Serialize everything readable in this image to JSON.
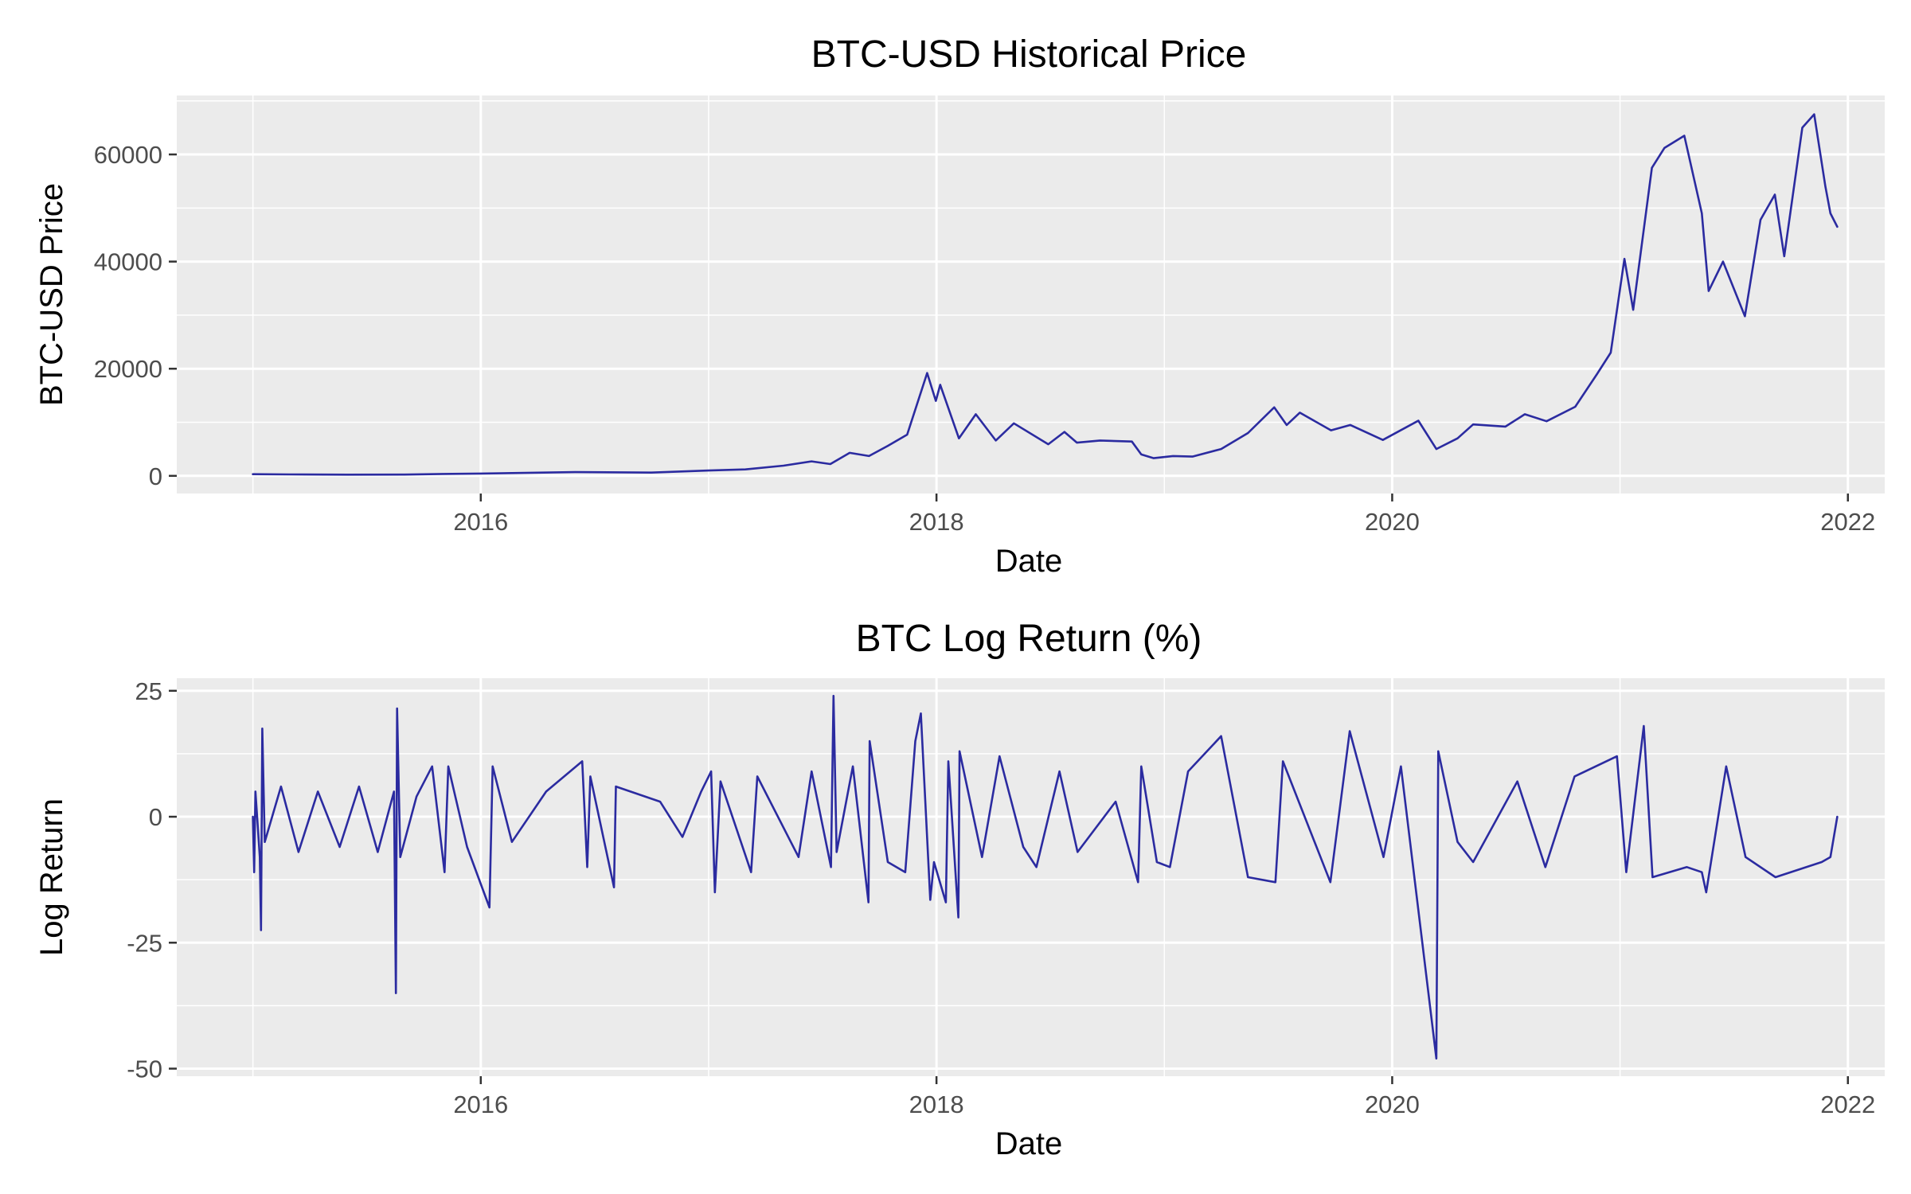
{
  "colors": {
    "series": "#2b2ba0",
    "panel": "#ebebeb",
    "grid": "#ffffff",
    "tick_text": "#4d4d4d"
  },
  "chart_data": [
    {
      "type": "line",
      "title": "BTC-USD Historical Price",
      "xlabel": "Date",
      "ylabel": "BTC-USD Price",
      "x_ticks": [
        "2016",
        "2018",
        "2020",
        "2022"
      ],
      "y_ticks": [
        "0",
        "20000",
        "40000",
        "60000"
      ],
      "xlim": [
        "2014-09-01",
        "2022-03-01"
      ],
      "ylim": [
        -3300,
        71000
      ],
      "grid": true,
      "series": [
        {
          "values": [
            [
              "2015-01-01",
              315
            ],
            [
              "2015-03-01",
              270
            ],
            [
              "2015-06-01",
              225
            ],
            [
              "2015-09-01",
              230
            ],
            [
              "2015-11-01",
              350
            ],
            [
              "2016-01-01",
              430
            ],
            [
              "2016-06-01",
              700
            ],
            [
              "2016-10-01",
              615
            ],
            [
              "2017-01-01",
              1000
            ],
            [
              "2017-03-01",
              1200
            ],
            [
              "2017-05-01",
              1900
            ],
            [
              "2017-06-15",
              2700
            ],
            [
              "2017-07-15",
              2200
            ],
            [
              "2017-08-15",
              4300
            ],
            [
              "2017-09-15",
              3700
            ],
            [
              "2017-10-15",
              5600
            ],
            [
              "2017-11-15",
              7700
            ],
            [
              "2017-12-17",
              19200
            ],
            [
              "2017-12-31",
              14000
            ],
            [
              "2018-01-07",
              17000
            ],
            [
              "2018-02-06",
              7000
            ],
            [
              "2018-03-05",
              11500
            ],
            [
              "2018-04-06",
              6600
            ],
            [
              "2018-05-05",
              9800
            ],
            [
              "2018-06-29",
              5900
            ],
            [
              "2018-07-25",
              8200
            ],
            [
              "2018-08-14",
              6200
            ],
            [
              "2018-09-20",
              6600
            ],
            [
              "2018-11-10",
              6400
            ],
            [
              "2018-11-25",
              4000
            ],
            [
              "2018-12-15",
              3300
            ],
            [
              "2019-01-15",
              3700
            ],
            [
              "2019-02-15",
              3600
            ],
            [
              "2019-04-02",
              5000
            ],
            [
              "2019-05-15",
              8000
            ],
            [
              "2019-06-26",
              12800
            ],
            [
              "2019-07-16",
              9500
            ],
            [
              "2019-08-06",
              11800
            ],
            [
              "2019-09-25",
              8500
            ],
            [
              "2019-10-26",
              9500
            ],
            [
              "2019-12-17",
              6700
            ],
            [
              "2020-02-12",
              10300
            ],
            [
              "2020-03-12",
              5000
            ],
            [
              "2020-04-15",
              7000
            ],
            [
              "2020-05-10",
              9600
            ],
            [
              "2020-07-01",
              9200
            ],
            [
              "2020-08-01",
              11500
            ],
            [
              "2020-09-05",
              10200
            ],
            [
              "2020-10-21",
              12900
            ],
            [
              "2020-11-25",
              19000
            ],
            [
              "2020-12-17",
              23000
            ],
            [
              "2021-01-08",
              40500
            ],
            [
              "2021-01-22",
              31000
            ],
            [
              "2021-02-21",
              57500
            ],
            [
              "2021-03-13",
              61200
            ],
            [
              "2021-04-14",
              63500
            ],
            [
              "2021-05-12",
              49000
            ],
            [
              "2021-05-23",
              34500
            ],
            [
              "2021-06-15",
              40000
            ],
            [
              "2021-07-20",
              29800
            ],
            [
              "2021-08-14",
              47800
            ],
            [
              "2021-09-06",
              52500
            ],
            [
              "2021-09-21",
              41000
            ],
            [
              "2021-10-20",
              65000
            ],
            [
              "2021-11-08",
              67500
            ],
            [
              "2021-11-26",
              54000
            ],
            [
              "2021-12-04",
              49000
            ],
            [
              "2021-12-15",
              46500
            ]
          ]
        }
      ]
    },
    {
      "type": "line",
      "title": "BTC Log Return (%)",
      "xlabel": "Date",
      "ylabel": "Log Return",
      "x_ticks": [
        "2016",
        "2018",
        "2020",
        "2022"
      ],
      "y_ticks": [
        "25",
        "0",
        "-25",
        "-50"
      ],
      "xlim": [
        "2014-09-01",
        "2022-03-01"
      ],
      "ylim": [
        -51.5,
        27.5
      ],
      "grid": true,
      "series": [
        {
          "values": [
            [
              "2015-01-01",
              0
            ],
            [
              "2015-01-03",
              -11
            ],
            [
              "2015-01-05",
              5
            ],
            [
              "2015-01-12",
              -8
            ],
            [
              "2015-01-14",
              -22.5
            ],
            [
              "2015-01-16",
              17.5
            ],
            [
              "2015-01-20",
              -5
            ],
            [
              "2015-02-15",
              6
            ],
            [
              "2015-03-15",
              -7
            ],
            [
              "2015-04-15",
              5
            ],
            [
              "2015-05-20",
              -6
            ],
            [
              "2015-06-20",
              6
            ],
            [
              "2015-07-20",
              -7
            ],
            [
              "2015-08-15",
              5
            ],
            [
              "2015-08-18",
              -35
            ],
            [
              "2015-08-20",
              21.5
            ],
            [
              "2015-08-25",
              -8
            ],
            [
              "2015-09-20",
              4
            ],
            [
              "2015-10-15",
              10
            ],
            [
              "2015-11-04",
              -11
            ],
            [
              "2015-11-10",
              10
            ],
            [
              "2015-12-10",
              -6
            ],
            [
              "2016-01-15",
              -18
            ],
            [
              "2016-01-20",
              10
            ],
            [
              "2016-02-20",
              -5
            ],
            [
              "2016-04-15",
              5
            ],
            [
              "2016-06-12",
              11
            ],
            [
              "2016-06-20",
              -10
            ],
            [
              "2016-06-25",
              8
            ],
            [
              "2016-08-02",
              -14
            ],
            [
              "2016-08-05",
              6
            ],
            [
              "2016-10-15",
              3
            ],
            [
              "2016-11-20",
              -4
            ],
            [
              "2016-12-20",
              5
            ],
            [
              "2017-01-05",
              9
            ],
            [
              "2017-01-11",
              -15
            ],
            [
              "2017-01-20",
              7
            ],
            [
              "2017-03-10",
              -11
            ],
            [
              "2017-03-20",
              8
            ],
            [
              "2017-05-25",
              -8
            ],
            [
              "2017-06-15",
              9
            ],
            [
              "2017-07-16",
              -10
            ],
            [
              "2017-07-20",
              24
            ],
            [
              "2017-07-25",
              -7
            ],
            [
              "2017-08-20",
              10
            ],
            [
              "2017-09-14",
              -17
            ],
            [
              "2017-09-16",
              15
            ],
            [
              "2017-10-15",
              -9
            ],
            [
              "2017-11-12",
              -11
            ],
            [
              "2017-11-28",
              15
            ],
            [
              "2017-12-07",
              20.5
            ],
            [
              "2017-12-22",
              -16.5
            ],
            [
              "2017-12-28",
              -9
            ],
            [
              "2018-01-16",
              -17
            ],
            [
              "2018-01-20",
              11
            ],
            [
              "2018-02-05",
              -20
            ],
            [
              "2018-02-07",
              13
            ],
            [
              "2018-03-15",
              -8
            ],
            [
              "2018-04-12",
              12
            ],
            [
              "2018-05-20",
              -6
            ],
            [
              "2018-06-10",
              -10
            ],
            [
              "2018-07-17",
              9
            ],
            [
              "2018-08-15",
              -7
            ],
            [
              "2018-10-15",
              3
            ],
            [
              "2018-11-20",
              -13
            ],
            [
              "2018-11-25",
              10
            ],
            [
              "2018-12-20",
              -9
            ],
            [
              "2019-01-10",
              -10
            ],
            [
              "2019-02-08",
              9
            ],
            [
              "2019-04-02",
              16
            ],
            [
              "2019-05-15",
              -12
            ],
            [
              "2019-06-28",
              -13
            ],
            [
              "2019-07-10",
              11
            ],
            [
              "2019-09-24",
              -13
            ],
            [
              "2019-10-25",
              17
            ],
            [
              "2019-12-18",
              -8
            ],
            [
              "2020-01-15",
              10
            ],
            [
              "2020-03-12",
              -48
            ],
            [
              "2020-03-15",
              13
            ],
            [
              "2020-04-15",
              -5
            ],
            [
              "2020-05-10",
              -9
            ],
            [
              "2020-07-20",
              7
            ],
            [
              "2020-09-03",
              -10
            ],
            [
              "2020-10-20",
              8
            ],
            [
              "2020-12-27",
              12
            ],
            [
              "2021-01-11",
              -11
            ],
            [
              "2021-02-08",
              18
            ],
            [
              "2021-02-22",
              -12
            ],
            [
              "2021-04-18",
              -10
            ],
            [
              "2021-05-12",
              -11
            ],
            [
              "2021-05-19",
              -15
            ],
            [
              "2021-06-20",
              10
            ],
            [
              "2021-07-21",
              -8
            ],
            [
              "2021-09-07",
              -12
            ],
            [
              "2021-11-20",
              -9
            ],
            [
              "2021-12-04",
              -8
            ],
            [
              "2021-12-15",
              0
            ]
          ]
        }
      ]
    }
  ]
}
